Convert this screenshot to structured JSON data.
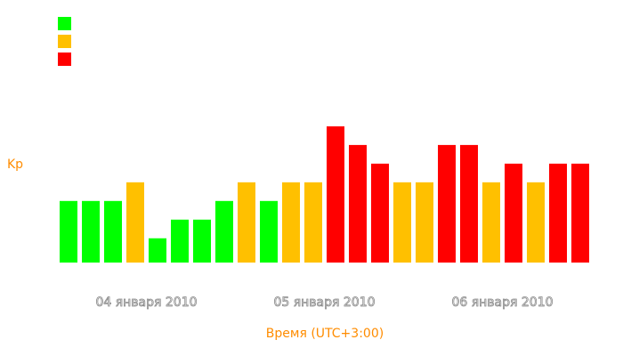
{
  "chart_data": {
    "type": "bar",
    "y_label": "Kp",
    "x_label": "Время (UTC+3:00)",
    "legend_colors": [
      "#00ff00",
      "#ffc000",
      "#ff0000"
    ],
    "ylim": [
      -0.3,
      9
    ],
    "groups": [
      {
        "label": "04 января 2010",
        "values": [
          3,
          3,
          3,
          4,
          1,
          2,
          2,
          3
        ],
        "colors": [
          "#00ff00",
          "#00ff00",
          "#00ff00",
          "#ffc000",
          "#00ff00",
          "#00ff00",
          "#00ff00",
          "#00ff00"
        ]
      },
      {
        "label": "05 января 2010",
        "values": [
          4,
          3,
          4,
          4,
          7,
          6,
          5,
          4
        ],
        "colors": [
          "#ffc000",
          "#00ff00",
          "#ffc000",
          "#ffc000",
          "#ff0000",
          "#ff0000",
          "#ff0000",
          "#ffc000"
        ]
      },
      {
        "label": "06 января 2010",
        "values": [
          4,
          6,
          6,
          4,
          5,
          4,
          5,
          5
        ],
        "colors": [
          "#ffc000",
          "#ff0000",
          "#ff0000",
          "#ffc000",
          "#ff0000",
          "#ffc000",
          "#ff0000",
          "#ff0000"
        ]
      }
    ]
  }
}
